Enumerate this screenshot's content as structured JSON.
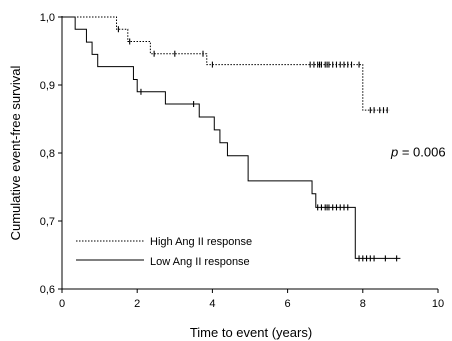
{
  "chart_data": {
    "type": "line",
    "title": "",
    "xlabel": "Time to event (years)",
    "ylabel": "Cumulative event-free survival",
    "xlim": [
      0,
      10
    ],
    "ylim": [
      0.6,
      1.0
    ],
    "x_ticks": [
      0,
      2,
      4,
      6,
      8,
      10
    ],
    "x_tick_labels": [
      "0",
      "2",
      "4",
      "6",
      "8",
      "10"
    ],
    "y_ticks": [
      0.6,
      0.7,
      0.8,
      0.9,
      1.0
    ],
    "y_tick_labels": [
      "0,6",
      "0,7",
      "0,8",
      "0,9",
      "1,0"
    ],
    "grid": false,
    "legend_position": "bottom-left",
    "annotation": {
      "prefix": "p",
      "text": " = 0.006",
      "x": 8.75,
      "y": 0.795
    },
    "series": [
      {
        "name": "High Ang II response",
        "line_style": "dotted",
        "steps": [
          [
            0,
            1.0
          ],
          [
            1.45,
            0.982
          ],
          [
            1.75,
            0.964
          ],
          [
            2.35,
            0.946
          ],
          [
            3.85,
            0.93
          ],
          [
            8.0,
            0.863
          ],
          [
            8.7,
            0.863
          ]
        ],
        "censored": [
          1.5,
          1.8,
          2.45,
          3.0,
          3.75,
          4.0,
          6.6,
          6.7,
          6.8,
          6.85,
          6.9,
          7.0,
          7.05,
          7.1,
          7.2,
          7.3,
          7.4,
          7.5,
          7.6,
          7.7,
          7.9,
          8.2,
          8.3,
          8.45,
          8.55,
          8.65
        ]
      },
      {
        "name": "Low Ang II response",
        "line_style": "solid",
        "steps": [
          [
            0,
            1.0
          ],
          [
            0.35,
            0.982
          ],
          [
            0.65,
            0.963
          ],
          [
            0.8,
            0.945
          ],
          [
            0.95,
            0.927
          ],
          [
            1.9,
            0.908
          ],
          [
            2.0,
            0.89
          ],
          [
            2.75,
            0.872
          ],
          [
            3.65,
            0.853
          ],
          [
            4.05,
            0.834
          ],
          [
            4.2,
            0.815
          ],
          [
            4.4,
            0.796
          ],
          [
            4.95,
            0.759
          ],
          [
            6.65,
            0.74
          ],
          [
            6.75,
            0.72
          ],
          [
            7.8,
            0.645
          ],
          [
            9.0,
            0.645
          ]
        ],
        "censored": [
          2.1,
          3.5,
          6.8,
          6.9,
          7.0,
          7.05,
          7.1,
          7.2,
          7.3,
          7.4,
          7.5,
          7.6,
          7.9,
          8.0,
          8.1,
          8.2,
          8.3,
          8.6,
          8.9
        ]
      }
    ]
  }
}
